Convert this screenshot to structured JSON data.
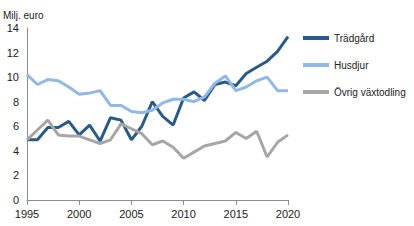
{
  "chart_data": {
    "type": "line",
    "y_label": "Milj. euro",
    "x": [
      1995,
      1996,
      1997,
      1998,
      1999,
      2000,
      2001,
      2002,
      2003,
      2004,
      2005,
      2006,
      2007,
      2008,
      2009,
      2010,
      2011,
      2012,
      2013,
      2014,
      2015,
      2016,
      2017,
      2018,
      2019,
      2020
    ],
    "series": [
      {
        "name": "Trädgård",
        "color": "#2b5a87",
        "values": [
          4.9,
          4.9,
          5.9,
          5.9,
          6.4,
          5.3,
          6.1,
          4.8,
          6.7,
          6.5,
          4.9,
          6.0,
          8.0,
          6.8,
          6.1,
          8.3,
          8.8,
          8.1,
          9.4,
          9.6,
          9.3,
          10.3,
          10.8,
          11.3,
          12.1,
          13.3
        ]
      },
      {
        "name": "Husdjur",
        "color": "#92b8e6",
        "values": [
          10.2,
          9.4,
          9.8,
          9.7,
          9.2,
          8.6,
          8.7,
          8.9,
          7.7,
          7.7,
          7.2,
          7.1,
          7.3,
          7.9,
          8.2,
          8.2,
          8.0,
          8.4,
          9.5,
          10.1,
          8.9,
          9.2,
          9.7,
          10.0,
          8.9,
          8.9
        ]
      },
      {
        "name": "Övrig växtodling",
        "color": "#a6a6a6",
        "values": [
          4.9,
          5.7,
          6.5,
          5.3,
          5.2,
          5.2,
          4.9,
          4.6,
          4.9,
          6.2,
          5.8,
          5.4,
          4.5,
          4.8,
          4.3,
          3.4,
          3.9,
          4.4,
          4.6,
          4.8,
          5.5,
          5.0,
          5.6,
          3.5,
          4.7,
          5.3
        ]
      }
    ],
    "xlim": [
      1995,
      2020
    ],
    "xticks": [
      1995,
      2000,
      2005,
      2010,
      2015,
      2020
    ],
    "ylim": [
      0,
      14
    ],
    "yticks": [
      0,
      2,
      4,
      6,
      8,
      10,
      12,
      14
    ],
    "grid": false,
    "legend": "right"
  }
}
